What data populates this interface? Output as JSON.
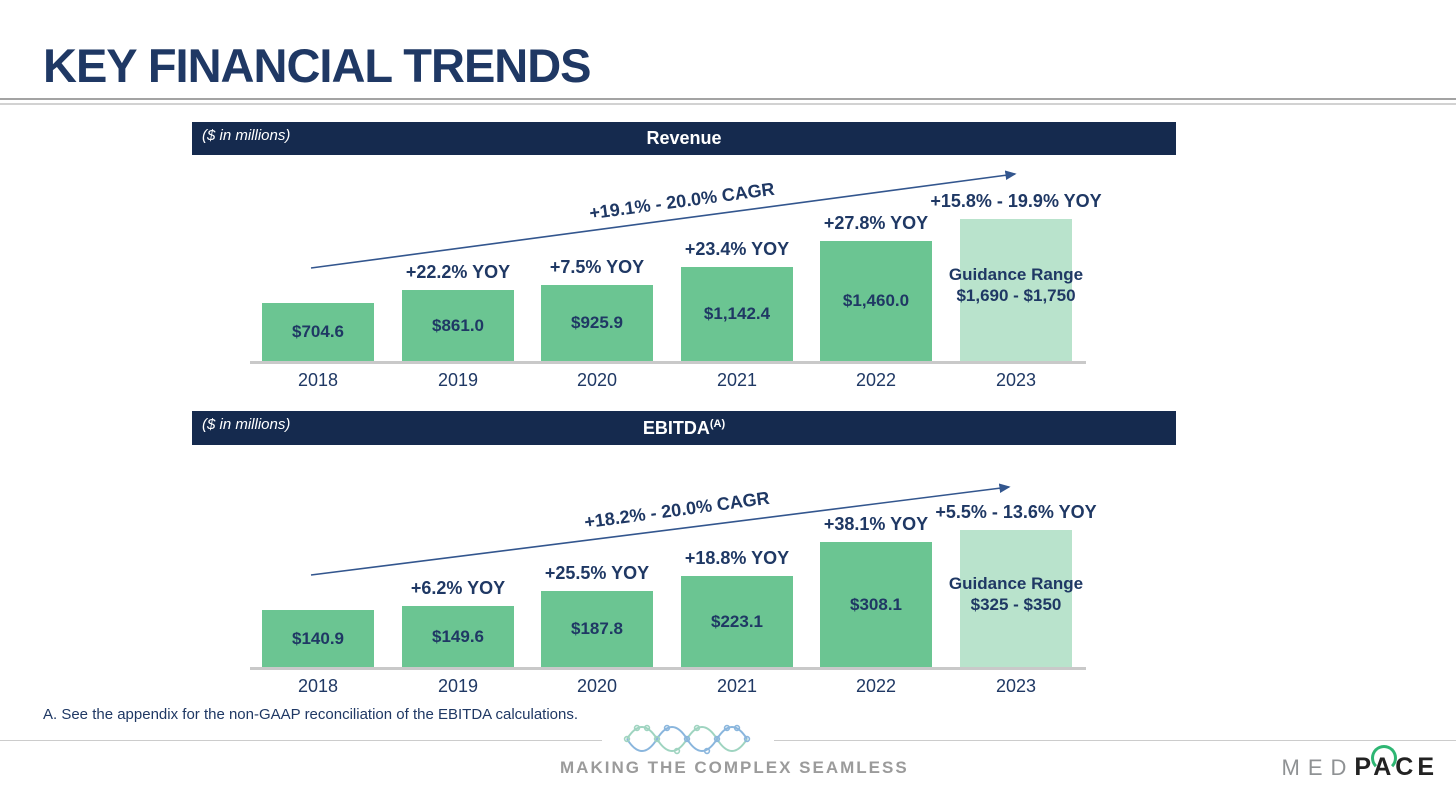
{
  "title": "KEY FINANCIAL TRENDS",
  "footnote": "A. See the appendix for the non-GAAP reconciliation of the EBITDA calculations.",
  "footer": {
    "tagline": "MAKING THE COMPLEX SEAMLESS",
    "logo": {
      "med": "MED",
      "pace": "PACE"
    }
  },
  "colors": {
    "navy_text": "#1f3864",
    "header_bg": "#152a4e",
    "bar_green": "#6bc592",
    "bar_light_green": "#b9e3cc",
    "arrow_blue": "#33568e",
    "axis_gray": "#c9c9c9",
    "tagline_gray": "#9b9b9b",
    "logo_green": "#2eb673"
  },
  "chart_data": [
    {
      "type": "bar",
      "title": "Revenue",
      "units_note": "($ in millions)",
      "cagr_label": "+19.1% - 20.0% CAGR",
      "categories": [
        "2018",
        "2019",
        "2020",
        "2021",
        "2022",
        "2023"
      ],
      "values": [
        704.6,
        861.0,
        925.9,
        1142.4,
        1460.0,
        null
      ],
      "bar_labels": [
        "$704.6",
        "$861.0",
        "$925.9",
        "$1,142.4",
        "$1,460.0",
        null
      ],
      "yoy_labels": [
        null,
        "+22.2% YOY",
        "+7.5% YOY",
        "+23.4% YOY",
        "+27.8% YOY",
        "+15.8% - 19.9% YOY"
      ],
      "guidance": {
        "index": 5,
        "line1": "Guidance Range",
        "line2": "$1,690 - $1,750",
        "range": [
          1690,
          1750
        ]
      },
      "ylim": [
        0,
        1750
      ],
      "legend": "none",
      "grid": false
    },
    {
      "type": "bar",
      "title": "EBITDA",
      "title_sup": "(A)",
      "units_note": "($ in millions)",
      "cagr_label": "+18.2% - 20.0% CAGR",
      "categories": [
        "2018",
        "2019",
        "2020",
        "2021",
        "2022",
        "2023"
      ],
      "values": [
        140.9,
        149.6,
        187.8,
        223.1,
        308.1,
        null
      ],
      "bar_labels": [
        "$140.9",
        "$149.6",
        "$187.8",
        "$223.1",
        "$308.1",
        null
      ],
      "yoy_labels": [
        null,
        "+6.2% YOY",
        "+25.5% YOY",
        "+18.8% YOY",
        "+38.1% YOY",
        "+5.5% - 13.6% YOY"
      ],
      "guidance": {
        "index": 5,
        "line1": "Guidance Range",
        "line2": "$325 - $350",
        "range": [
          325,
          350
        ]
      },
      "ylim": [
        0,
        350
      ],
      "legend": "none",
      "grid": false
    }
  ]
}
